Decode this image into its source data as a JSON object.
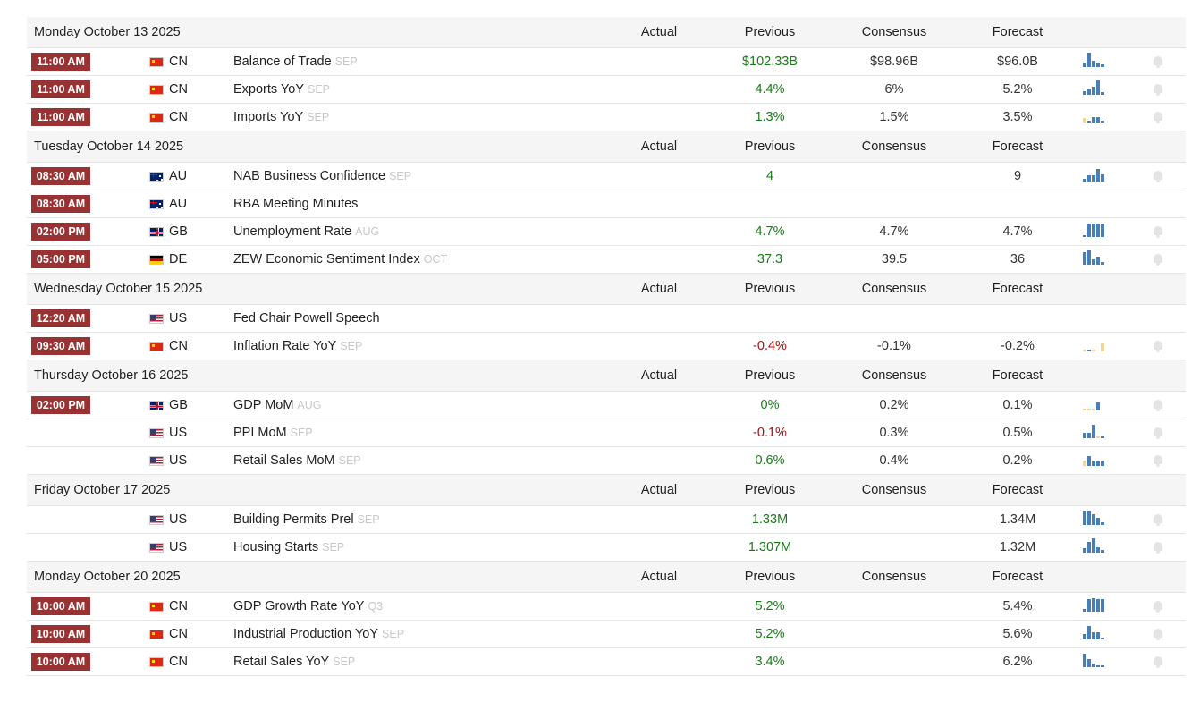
{
  "header_labels": {
    "actual": "Actual",
    "previous": "Previous",
    "consensus": "Consensus",
    "forecast": "Forecast"
  },
  "days": [
    {
      "date": "Monday October 13 2025",
      "events": [
        {
          "time": "11:00 AM",
          "flag": "cn",
          "country": "CN",
          "event": "Balance of Trade",
          "ref": "SEP",
          "actual": "",
          "previous": "$102.33B",
          "previous_color": "pos",
          "consensus": "$98.96B",
          "forecast": "$96.0B",
          "spark": [
            {
              "v": 0.3,
              "c": "b"
            },
            {
              "v": 0.9,
              "c": "b"
            },
            {
              "v": 0.4,
              "c": "b"
            },
            {
              "v": 0.2,
              "c": "b"
            },
            {
              "v": 0.15,
              "c": "b"
            }
          ]
        },
        {
          "time": "11:00 AM",
          "flag": "cn",
          "country": "CN",
          "event": "Exports YoY",
          "ref": "SEP",
          "actual": "",
          "previous": "4.4%",
          "previous_color": "pos",
          "consensus": "6%",
          "forecast": "5.2%",
          "spark": [
            {
              "v": 0.2,
              "c": "b"
            },
            {
              "v": 0.4,
              "c": "b"
            },
            {
              "v": 0.5,
              "c": "b"
            },
            {
              "v": 0.9,
              "c": "b"
            },
            {
              "v": 0.15,
              "c": "b"
            }
          ]
        },
        {
          "time": "11:00 AM",
          "flag": "cn",
          "country": "CN",
          "event": "Imports YoY",
          "ref": "SEP",
          "actual": "",
          "previous": "1.3%",
          "previous_color": "pos",
          "consensus": "1.5%",
          "forecast": "3.5%",
          "spark": [
            {
              "v": 0.3,
              "c": "y"
            },
            {
              "v": 0.1,
              "c": "b"
            },
            {
              "v": 0.35,
              "c": "b"
            },
            {
              "v": 0.35,
              "c": "b"
            },
            {
              "v": 0.1,
              "c": "b"
            }
          ]
        }
      ]
    },
    {
      "date": "Tuesday October 14 2025",
      "events": [
        {
          "time": "08:30 AM",
          "flag": "au",
          "country": "AU",
          "event": "NAB Business Confidence",
          "ref": "SEP",
          "actual": "",
          "previous": "4",
          "previous_color": "pos",
          "consensus": "",
          "forecast": "9",
          "spark": [
            {
              "v": 0.15,
              "c": "b"
            },
            {
              "v": 0.4,
              "c": "b"
            },
            {
              "v": 0.4,
              "c": "b"
            },
            {
              "v": 0.75,
              "c": "b"
            },
            {
              "v": 0.45,
              "c": "b"
            }
          ]
        },
        {
          "time": "08:30 AM",
          "flag": "au",
          "country": "AU",
          "event": "RBA Meeting Minutes",
          "ref": "",
          "actual": "",
          "previous": "",
          "previous_color": "pos",
          "consensus": "",
          "forecast": "",
          "spark": []
        },
        {
          "time": "02:00 PM",
          "flag": "gb",
          "country": "GB",
          "event": "Unemployment Rate",
          "ref": "AUG",
          "actual": "",
          "previous": "4.7%",
          "previous_color": "pos",
          "consensus": "4.7%",
          "forecast": "4.7%",
          "spark": [
            {
              "v": 0.1,
              "c": "b"
            },
            {
              "v": 0.85,
              "c": "b"
            },
            {
              "v": 0.85,
              "c": "b"
            },
            {
              "v": 0.85,
              "c": "b"
            },
            {
              "v": 0.85,
              "c": "b"
            }
          ]
        },
        {
          "time": "05:00 PM",
          "flag": "de",
          "country": "DE",
          "event": "ZEW Economic Sentiment Index",
          "ref": "OCT",
          "actual": "",
          "previous": "37.3",
          "previous_color": "pos",
          "consensus": "39.5",
          "forecast": "36",
          "spark": [
            {
              "v": 0.8,
              "c": "b"
            },
            {
              "v": 0.9,
              "c": "b"
            },
            {
              "v": 0.35,
              "c": "b"
            },
            {
              "v": 0.5,
              "c": "b"
            },
            {
              "v": 0.15,
              "c": "b"
            }
          ]
        }
      ]
    },
    {
      "date": "Wednesday October 15 2025",
      "events": [
        {
          "time": "12:20 AM",
          "flag": "us",
          "country": "US",
          "event": "Fed Chair Powell Speech",
          "ref": "",
          "actual": "",
          "previous": "",
          "previous_color": "pos",
          "consensus": "",
          "forecast": "",
          "spark": []
        },
        {
          "time": "09:30 AM",
          "flag": "cn",
          "country": "CN",
          "event": "Inflation Rate YoY",
          "ref": "SEP",
          "actual": "",
          "previous": "-0.4%",
          "previous_color": "neg",
          "consensus": "-0.1%",
          "forecast": "-0.2%",
          "spark": [
            {
              "v": 0.1,
              "c": "y"
            },
            {
              "v": 0.1,
              "c": "b"
            },
            {
              "v": 0.1,
              "c": "y"
            },
            {
              "v": 0.1,
              "c": "w"
            },
            {
              "v": 0.5,
              "c": "y"
            }
          ]
        }
      ]
    },
    {
      "date": "Thursday October 16 2025",
      "events": [
        {
          "time": "02:00 PM",
          "flag": "gb",
          "country": "GB",
          "event": "GDP MoM",
          "ref": "AUG",
          "actual": "",
          "previous": "0%",
          "previous_color": "pos",
          "consensus": "0.2%",
          "forecast": "0.1%",
          "spark": [
            {
              "v": 0.1,
              "c": "y"
            },
            {
              "v": 0.1,
              "c": "y"
            },
            {
              "v": 0.1,
              "c": "y"
            },
            {
              "v": 0.5,
              "c": "b"
            },
            {
              "v": 0.0,
              "c": "w"
            }
          ]
        },
        {
          "time": "",
          "flag": "us",
          "country": "US",
          "event": "PPI MoM",
          "ref": "SEP",
          "actual": "",
          "previous": "-0.1%",
          "previous_color": "neg",
          "consensus": "0.3%",
          "forecast": "0.5%",
          "spark": [
            {
              "v": 0.35,
              "c": "b"
            },
            {
              "v": 0.35,
              "c": "b"
            },
            {
              "v": 0.85,
              "c": "b"
            },
            {
              "v": 0.1,
              "c": "y"
            },
            {
              "v": 0.1,
              "c": "b"
            }
          ]
        },
        {
          "time": "",
          "flag": "us",
          "country": "US",
          "event": "Retail Sales MoM",
          "ref": "SEP",
          "actual": "",
          "previous": "0.6%",
          "previous_color": "pos",
          "consensus": "0.4%",
          "forecast": "0.2%",
          "spark": [
            {
              "v": 0.35,
              "c": "y"
            },
            {
              "v": 0.6,
              "c": "b"
            },
            {
              "v": 0.35,
              "c": "b"
            },
            {
              "v": 0.35,
              "c": "b"
            },
            {
              "v": 0.35,
              "c": "b"
            }
          ]
        }
      ]
    },
    {
      "date": "Friday October 17 2025",
      "events": [
        {
          "time": "",
          "flag": "us",
          "country": "US",
          "event": "Building Permits Prel",
          "ref": "SEP",
          "actual": "",
          "previous": "1.33M",
          "previous_color": "pos",
          "consensus": "",
          "forecast": "1.34M",
          "spark": [
            {
              "v": 0.9,
              "c": "b"
            },
            {
              "v": 0.9,
              "c": "b"
            },
            {
              "v": 0.65,
              "c": "b"
            },
            {
              "v": 0.45,
              "c": "b"
            },
            {
              "v": 0.15,
              "c": "b"
            }
          ]
        },
        {
          "time": "",
          "flag": "us",
          "country": "US",
          "event": "Housing Starts",
          "ref": "SEP",
          "actual": "",
          "previous": "1.307M",
          "previous_color": "pos",
          "consensus": "",
          "forecast": "1.32M",
          "spark": [
            {
              "v": 0.3,
              "c": "b"
            },
            {
              "v": 0.65,
              "c": "b"
            },
            {
              "v": 0.9,
              "c": "b"
            },
            {
              "v": 0.35,
              "c": "b"
            },
            {
              "v": 0.15,
              "c": "b"
            }
          ]
        }
      ]
    },
    {
      "date": "Monday October 20 2025",
      "events": [
        {
          "time": "10:00 AM",
          "flag": "cn",
          "country": "CN",
          "event": "GDP Growth Rate YoY",
          "ref": "Q3",
          "actual": "",
          "previous": "5.2%",
          "previous_color": "pos",
          "consensus": "",
          "forecast": "5.4%",
          "spark": [
            {
              "v": 0.15,
              "c": "b"
            },
            {
              "v": 0.75,
              "c": "b"
            },
            {
              "v": 0.85,
              "c": "b"
            },
            {
              "v": 0.75,
              "c": "b"
            },
            {
              "v": 0.75,
              "c": "b"
            }
          ]
        },
        {
          "time": "10:00 AM",
          "flag": "cn",
          "country": "CN",
          "event": "Industrial Production YoY",
          "ref": "SEP",
          "actual": "",
          "previous": "5.2%",
          "previous_color": "pos",
          "consensus": "",
          "forecast": "5.6%",
          "spark": [
            {
              "v": 0.35,
              "c": "b"
            },
            {
              "v": 0.85,
              "c": "b"
            },
            {
              "v": 0.45,
              "c": "b"
            },
            {
              "v": 0.45,
              "c": "b"
            },
            {
              "v": 0.1,
              "c": "b"
            }
          ]
        },
        {
          "time": "10:00 AM",
          "flag": "cn",
          "country": "CN",
          "event": "Retail Sales YoY",
          "ref": "SEP",
          "actual": "",
          "previous": "3.4%",
          "previous_color": "pos",
          "consensus": "",
          "forecast": "6.2%",
          "spark": [
            {
              "v": 0.85,
              "c": "b"
            },
            {
              "v": 0.5,
              "c": "b"
            },
            {
              "v": 0.2,
              "c": "b"
            },
            {
              "v": 0.1,
              "c": "b"
            },
            {
              "v": 0.1,
              "c": "b"
            }
          ]
        }
      ]
    }
  ],
  "colors": {
    "time_badge": "#993333",
    "positive": "#1a7a1a",
    "negative": "#a11313",
    "spark_blue": "#4a7fb5",
    "spark_yellow": "#f1d796"
  }
}
